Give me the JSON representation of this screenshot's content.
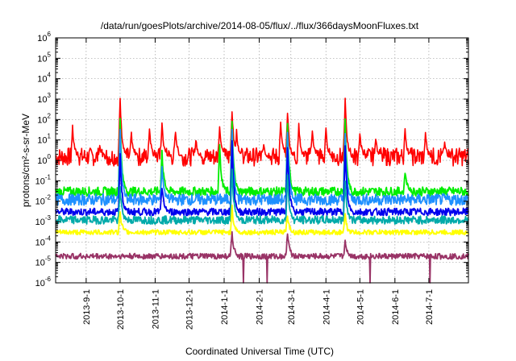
{
  "chart_data": {
    "type": "line",
    "title": "/data/run/goesPlots/archive/2014-08-05/flux/../flux/366daysMoonFluxes.txt",
    "xlabel": "Coordinated Universal Time (UTC)",
    "ylabel": "protons/cm²-s-sr-MeV",
    "yscale": "log",
    "ylim": [
      1e-06,
      1000000.0
    ],
    "xlim": [
      "2013-08-05",
      "2014-08-05"
    ],
    "grid": true,
    "x_ticks": [
      "2013-9-1",
      "2013-10-1",
      "2013-11-1",
      "2013-12-1",
      "2014-1-1",
      "2014-2-1",
      "2014-3-1",
      "2014-4-1",
      "2014-5-1",
      "2014-6-1",
      "2014-7-1"
    ],
    "y_ticks": [
      {
        "base": "10",
        "exp": "6"
      },
      {
        "base": "10",
        "exp": "5"
      },
      {
        "base": "10",
        "exp": "4"
      },
      {
        "base": "10",
        "exp": "3"
      },
      {
        "base": "10",
        "exp": "2"
      },
      {
        "base": "10",
        "exp": "1"
      },
      {
        "base": "10",
        "exp": "0"
      },
      {
        "base": "10",
        "exp": "-1"
      },
      {
        "base": "10",
        "exp": "-2"
      },
      {
        "base": "10",
        "exp": "-3"
      },
      {
        "base": "10",
        "exp": "-4"
      },
      {
        "base": "10",
        "exp": "-5"
      },
      {
        "base": "10",
        "exp": "-6"
      }
    ],
    "series": [
      {
        "color": "#ff0000",
        "baseline": 1.5,
        "events": [
          [
            "2013-08-20",
            40
          ],
          [
            "2013-09-13",
            4
          ],
          [
            "2013-10-01",
            1000
          ],
          [
            "2013-10-11",
            20
          ],
          [
            "2013-10-27",
            40
          ],
          [
            "2013-11-07",
            60
          ],
          [
            "2013-11-19",
            30
          ],
          [
            "2013-12-07",
            10
          ],
          [
            "2013-12-28",
            50
          ],
          [
            "2014-01-08",
            300
          ],
          [
            "2014-01-12",
            30
          ],
          [
            "2014-02-05",
            5
          ],
          [
            "2014-02-20",
            60
          ],
          [
            "2014-02-26",
            250
          ],
          [
            "2014-03-08",
            50
          ],
          [
            "2014-03-20",
            30
          ],
          [
            "2014-04-01",
            30
          ],
          [
            "2014-04-18",
            1000
          ],
          [
            "2014-05-01",
            20
          ],
          [
            "2014-05-15",
            10
          ],
          [
            "2014-06-10",
            30
          ],
          [
            "2014-06-28",
            20
          ],
          [
            "2014-07-15",
            8
          ]
        ],
        "dips": []
      },
      {
        "color": "#00ee00",
        "baseline": 0.03,
        "events": [
          [
            "2013-10-01",
            100
          ],
          [
            "2013-11-07",
            3
          ],
          [
            "2013-12-28",
            5
          ],
          [
            "2014-01-08",
            100
          ],
          [
            "2014-02-26",
            80
          ],
          [
            "2014-04-18",
            100
          ],
          [
            "2014-06-10",
            0.3
          ]
        ],
        "dips": []
      },
      {
        "color": "#1e90ff",
        "baseline": 0.012,
        "events": [
          [
            "2013-10-01",
            30
          ],
          [
            "2013-11-07",
            0.5
          ],
          [
            "2014-01-08",
            40
          ],
          [
            "2014-02-26",
            30
          ],
          [
            "2014-04-18",
            20
          ]
        ],
        "dips": []
      },
      {
        "color": "#0000ee",
        "baseline": 0.003,
        "events": [
          [
            "2013-10-01",
            2
          ],
          [
            "2013-11-07",
            0.05
          ],
          [
            "2014-01-08",
            10
          ],
          [
            "2014-02-26",
            5
          ],
          [
            "2014-04-18",
            4
          ]
        ],
        "dips": []
      },
      {
        "color": "#00aaaa",
        "baseline": 0.0012,
        "events": [
          [
            "2013-10-01",
            0.05
          ],
          [
            "2014-01-08",
            0.4
          ],
          [
            "2014-02-26",
            0.2
          ],
          [
            "2014-04-18",
            0.1
          ]
        ],
        "dips": []
      },
      {
        "color": "#ffff00",
        "baseline": 0.0003,
        "events": [
          [
            "2013-10-01",
            0.003
          ],
          [
            "2014-01-08",
            0.005
          ],
          [
            "2014-02-26",
            0.002
          ],
          [
            "2014-04-18",
            0.002
          ]
        ],
        "dips": []
      },
      {
        "color": "#993366",
        "baseline": 2e-05,
        "events": [
          [
            "2014-01-08",
            0.0003
          ],
          [
            "2014-02-26",
            0.0003
          ],
          [
            "2014-04-18",
            0.0001
          ]
        ],
        "dips": [
          "2014-01-18",
          "2014-02-08",
          "2014-05-10",
          "2014-07-02"
        ]
      }
    ]
  }
}
